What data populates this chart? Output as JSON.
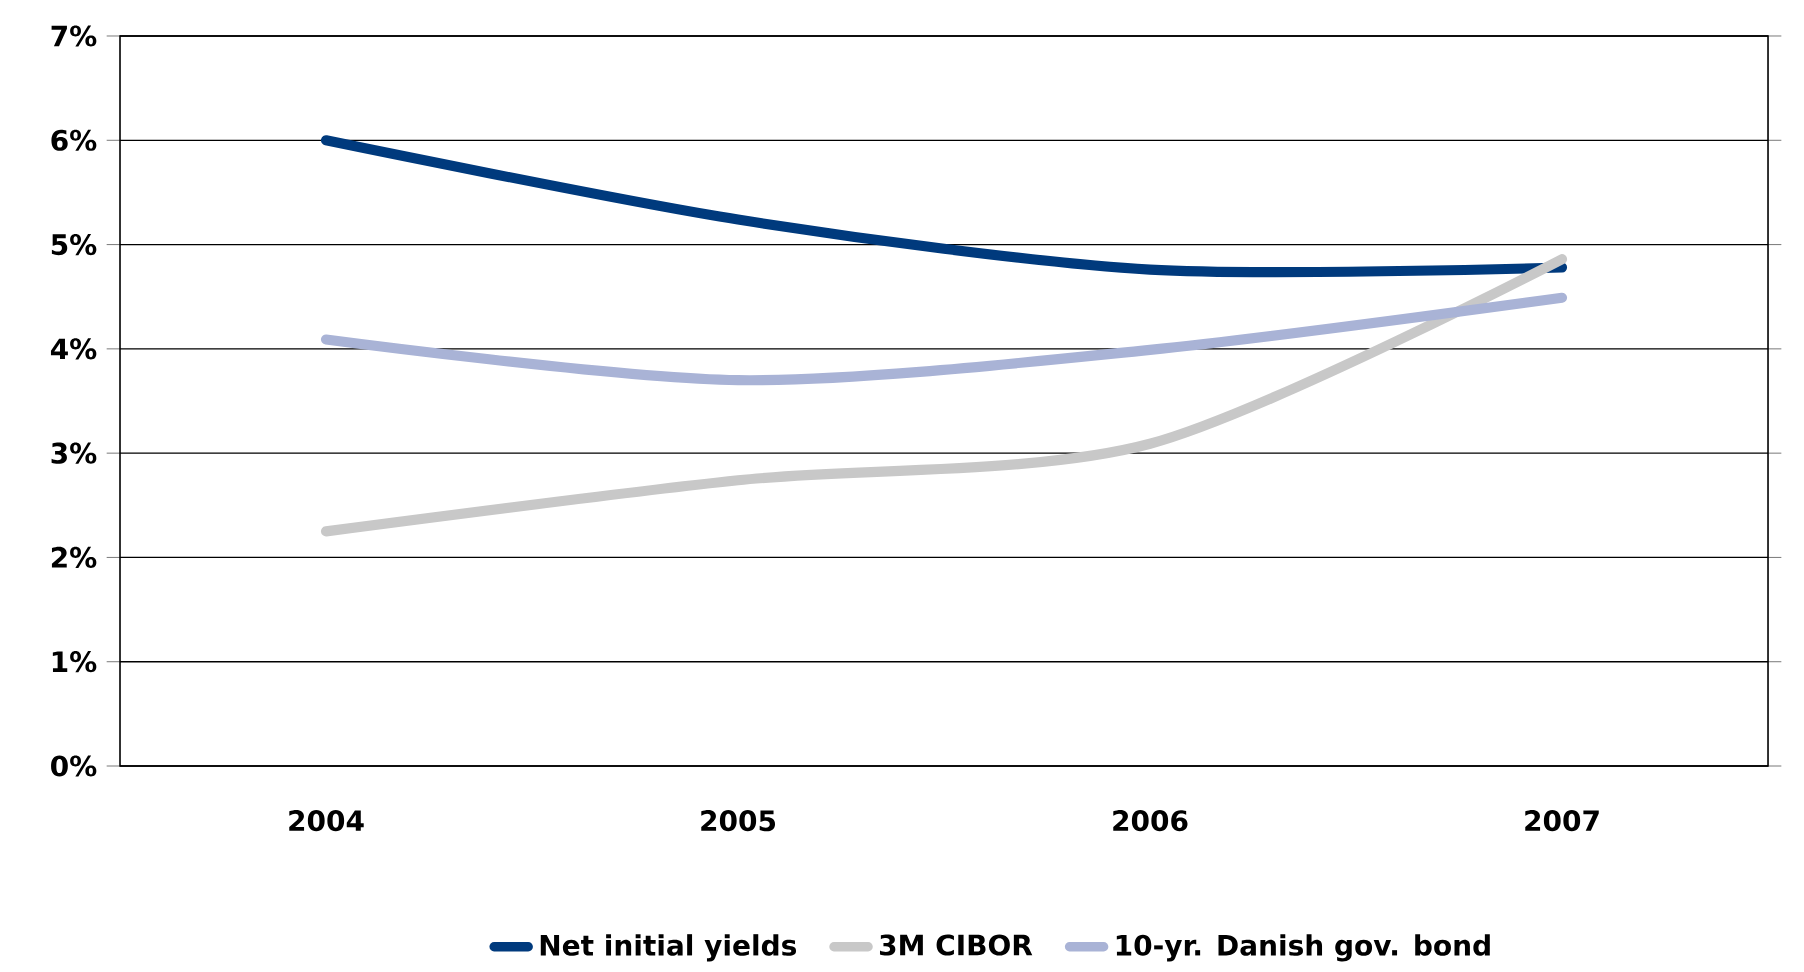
{
  "chart_data": {
    "type": "line",
    "categories": [
      "2004",
      "2005",
      "2006",
      "2007"
    ],
    "series": [
      {
        "name": "Net initial yields",
        "color": "#003a7d",
        "values": [
          6.0,
          5.24,
          4.76,
          4.78
        ]
      },
      {
        "name": "3M CIBOR",
        "color": "#c8c8c8",
        "values": [
          2.25,
          2.74,
          3.09,
          4.86
        ]
      },
      {
        "name": "10-yr. Danish gov. bond",
        "color": "#a9b3d6",
        "values": [
          4.09,
          3.7,
          3.99,
          4.49
        ]
      }
    ],
    "ylim": [
      0,
      7
    ],
    "yticks": [
      {
        "value": 0,
        "label": "0%"
      },
      {
        "value": 1,
        "label": "1%"
      },
      {
        "value": 2,
        "label": "2%"
      },
      {
        "value": 3,
        "label": "3%"
      },
      {
        "value": 4,
        "label": "4%"
      },
      {
        "value": 5,
        "label": "5%"
      },
      {
        "value": 6,
        "label": "6%"
      },
      {
        "value": 7,
        "label": "7%"
      }
    ],
    "grid": "y",
    "legend": "bottom"
  }
}
